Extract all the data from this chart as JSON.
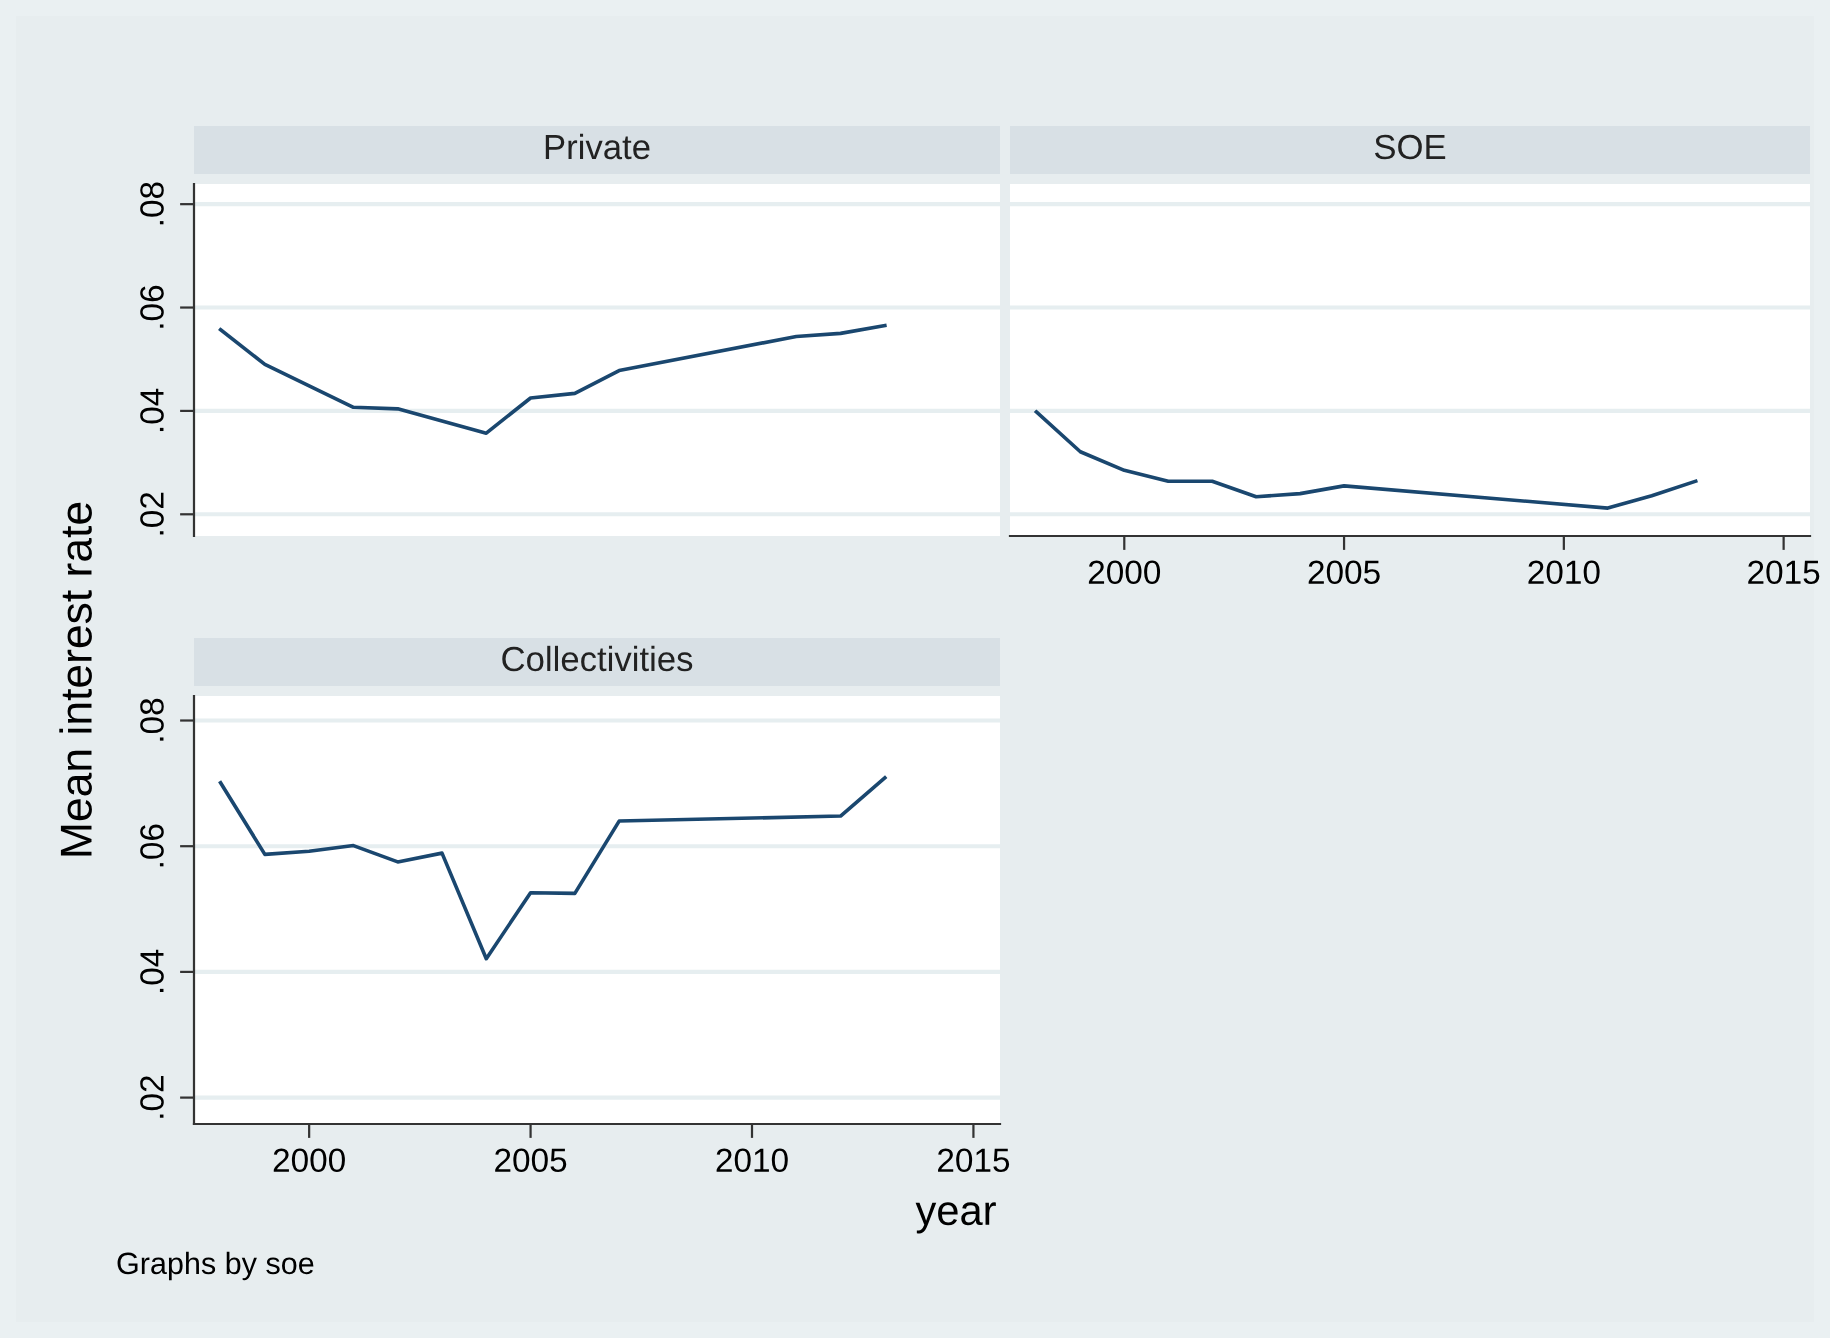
{
  "chart_data": [
    {
      "type": "line",
      "title": "Private",
      "ylabel": "Mean interest rate",
      "tick_labels": "y",
      "grid": "y",
      "legend": false,
      "x": [
        1998,
        1999,
        2001,
        2002,
        2004,
        2005,
        2006,
        2007,
        2011,
        2012,
        2013
      ],
      "series": [
        {
          "color": "#1a476f",
          "values": [
            0.0557,
            0.049,
            0.0407,
            0.0404,
            0.0357,
            0.0425,
            0.0434,
            0.0478,
            0.0544,
            0.055,
            0.0565
          ]
        }
      ],
      "xlim": [
        1997.4,
        2015.6
      ],
      "xticks": [
        2000,
        2005,
        2010,
        2015
      ],
      "ylim": [
        0.0158,
        0.0839
      ],
      "yticks": [
        {
          "value": 0.02,
          "label": ".02"
        },
        {
          "value": 0.04,
          "label": ".04"
        },
        {
          "value": 0.06,
          "label": ".06"
        },
        {
          "value": 0.08,
          "label": ".08"
        }
      ]
    },
    {
      "type": "line",
      "title": "SOE",
      "tick_labels": "x",
      "grid": "y",
      "legend": false,
      "x": [
        1998,
        1999,
        2000,
        2001,
        2002,
        2003,
        2004,
        2005,
        2011,
        2012,
        2013
      ],
      "series": [
        {
          "color": "#1a476f",
          "values": [
            0.0398,
            0.0321,
            0.0285,
            0.0264,
            0.0264,
            0.0234,
            0.024,
            0.0255,
            0.0212,
            0.0236,
            0.0264
          ]
        }
      ],
      "xlim": [
        1997.4,
        2015.6
      ],
      "xticks": [
        2000,
        2005,
        2010,
        2015
      ],
      "ylim": [
        0.0158,
        0.0839
      ],
      "yticks": [
        {
          "value": 0.02,
          "label": null
        },
        {
          "value": 0.04,
          "label": null
        },
        {
          "value": 0.06,
          "label": null
        },
        {
          "value": 0.08,
          "label": null
        }
      ]
    },
    {
      "type": "line",
      "title": "Collectivities",
      "xlabel": "year",
      "grid": "y",
      "legend": false,
      "annotations": [
        "Graphs by soe"
      ],
      "x": [
        1998,
        1999,
        2000,
        2001,
        2002,
        2003,
        2004,
        2005,
        2006,
        2007,
        2012,
        2013
      ],
      "series": [
        {
          "color": "#1a476f",
          "values": [
            0.0701,
            0.0587,
            0.0592,
            0.0601,
            0.0575,
            0.0589,
            0.0421,
            0.0526,
            0.0525,
            0.064,
            0.0648,
            0.0709
          ]
        }
      ],
      "xlim": [
        1997.4,
        2015.6
      ],
      "xticks": [
        2000,
        2005,
        2010,
        2015
      ],
      "ylim": [
        0.0158,
        0.0839
      ],
      "yticks": [
        {
          "value": 0.02,
          "label": ".02"
        },
        {
          "value": 0.04,
          "label": ".04"
        },
        {
          "value": 0.06,
          "label": ".06"
        },
        {
          "value": 0.08,
          "label": ".08"
        }
      ]
    }
  ]
}
